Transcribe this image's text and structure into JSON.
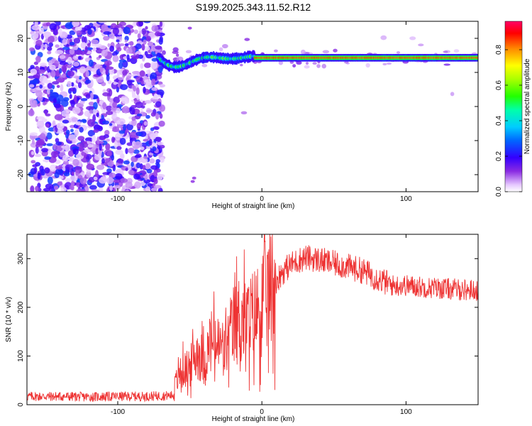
{
  "title": "S199.2025.343.11.52.R12",
  "chart_data": [
    {
      "type": "heatmap",
      "name": "spectrogram",
      "xlabel": "Height of straight line (km)",
      "ylabel": "Frequency (Hz)",
      "xlim": [
        -163,
        150
      ],
      "ylim": [
        -25,
        25
      ],
      "xticks": [
        -100,
        0,
        100
      ],
      "yticks": [
        -20,
        -10,
        0,
        10,
        20
      ],
      "colorbar": {
        "label": "Normalized spectral amplitude",
        "range": [
          0,
          0.96
        ],
        "ticks": [
          0.0,
          0.2,
          0.4,
          0.6,
          0.8
        ]
      },
      "features": {
        "noise_region_x": [
          -163,
          -72
        ],
        "tone_frequency_hz": 14.3,
        "tone_start_x": -72,
        "tone_wander_segment": [
          -72,
          -5
        ],
        "tone_peak_amplitude": 0.9
      }
    },
    {
      "type": "line",
      "name": "snr",
      "xlabel": "Height of straight line (km)",
      "ylabel": "SNR (10 * v/v)",
      "xlim": [
        -163,
        150
      ],
      "ylim": [
        0,
        350
      ],
      "xticks": [
        -100,
        0,
        100
      ],
      "yticks": [
        0,
        100,
        200,
        300
      ],
      "series": [
        {
          "name": "SNR",
          "color": "#ee3333",
          "x": [
            -163,
            -140,
            -120,
            -100,
            -80,
            -62,
            -60,
            -55,
            -50,
            -45,
            -40,
            -35,
            -30,
            -25,
            -20,
            -15,
            -10,
            -5,
            0,
            5,
            10,
            15,
            20,
            25,
            30,
            35,
            40,
            50,
            60,
            70,
            80,
            90,
            100,
            110,
            120,
            130,
            140,
            150
          ],
          "y": [
            17,
            17,
            16,
            17,
            17,
            19,
            45,
            70,
            75,
            110,
            90,
            130,
            120,
            115,
            160,
            180,
            170,
            185,
            205,
            235,
            255,
            275,
            288,
            296,
            302,
            300,
            297,
            290,
            283,
            275,
            260,
            245,
            245,
            242,
            240,
            238,
            236,
            235
          ]
        }
      ]
    }
  ]
}
